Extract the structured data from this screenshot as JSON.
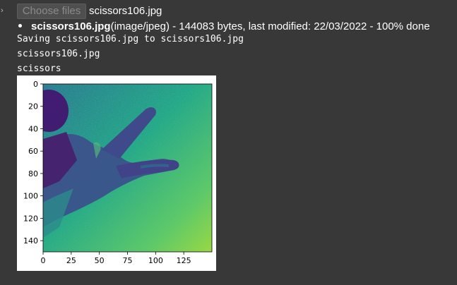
{
  "upload": {
    "button_label": "Choose files",
    "chosen_file": "scissors106.jpg",
    "file_name": "scissors106.jpg",
    "file_details": "(image/jpeg) - 144083 bytes, last modified: 22/03/2022 - 100% done"
  },
  "output": {
    "line1": "Saving scissors106.jpg to scissors106.jpg",
    "line2": "scissors106.jpg",
    "line3": "scissors"
  },
  "colors": {
    "background": "#383838",
    "image_light": "#7fc96a",
    "image_mid": "#25868e",
    "image_dark": "#45106f"
  },
  "chart_data": {
    "type": "heatmap",
    "xlim": [
      0,
      150
    ],
    "ylim": [
      150,
      0
    ],
    "x_ticks": [
      0,
      25,
      50,
      75,
      100,
      125
    ],
    "y_ticks": [
      0,
      20,
      40,
      60,
      80,
      100,
      120,
      140
    ],
    "title": "",
    "xlabel": "",
    "ylabel": ""
  }
}
